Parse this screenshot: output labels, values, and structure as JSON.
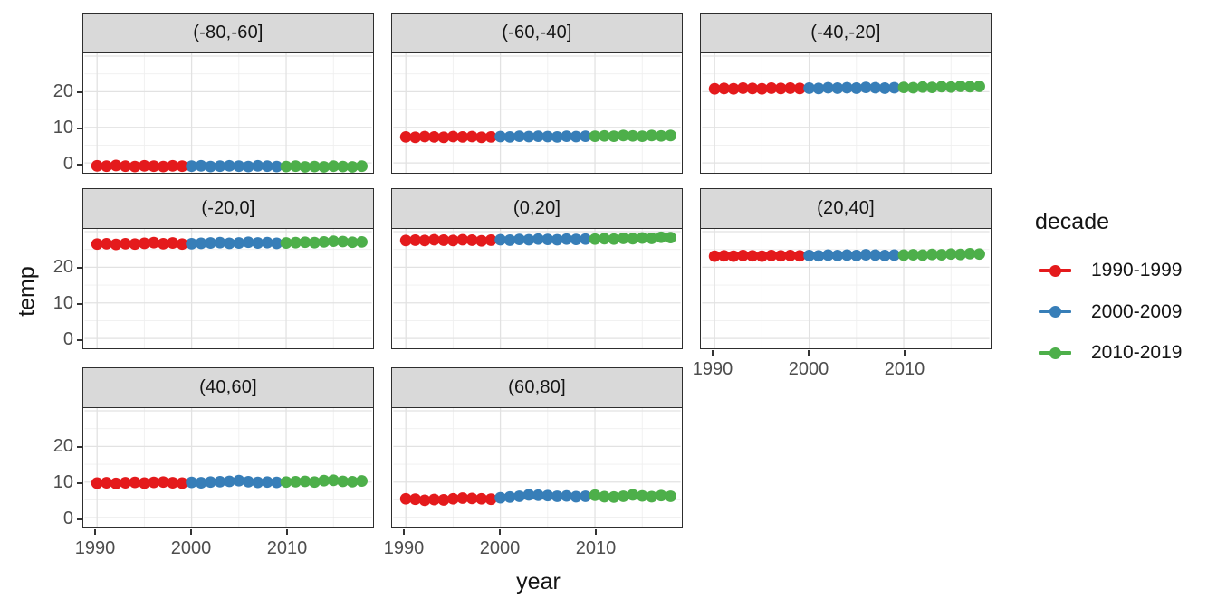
{
  "axes": {
    "x_title": "year",
    "y_title": "temp",
    "x_tick_labels": [
      "1990",
      "2000",
      "2010"
    ],
    "y_tick_labels": [
      "20",
      "10",
      "0"
    ]
  },
  "legend": {
    "title": "decade",
    "entries": [
      {
        "label": "1990-1999",
        "color": "#e41a1c"
      },
      {
        "label": "2000-2009",
        "color": "#377eb8"
      },
      {
        "label": "2010-2019",
        "color": "#4daf4a"
      }
    ]
  },
  "style_colors": {
    "strip_background": "#d9d9d9",
    "panel_border": "#2e2e2e",
    "grid_major": "#e2e2e2",
    "grid_minor": "#efefef",
    "tick_text": "#4d4d4d"
  },
  "chart_data": {
    "type": "scatter",
    "title": "",
    "xlabel": "year",
    "ylabel": "temp",
    "x_ticks": [
      1990,
      2000,
      2010
    ],
    "y_ticks": [
      0,
      10,
      20
    ],
    "xlim": [
      1988.7,
      2019.8
    ],
    "ylim": [
      -3,
      30.75
    ],
    "grid": true,
    "legend_position": "right",
    "legend_title": "decade",
    "series_names": [
      "1990-1999",
      "2000-2009",
      "2010-2019"
    ],
    "facets": [
      {
        "label": "(-80,-60]",
        "series": [
          {
            "name": "1990-1999",
            "start_year": 1990,
            "values": [
              -0.8,
              -0.9,
              -0.7,
              -0.9,
              -1.0,
              -0.8,
              -0.9,
              -1.0,
              -0.8,
              -0.9
            ]
          },
          {
            "name": "2000-2009",
            "start_year": 2000,
            "values": [
              -0.9,
              -0.8,
              -1.0,
              -0.9,
              -0.8,
              -0.9,
              -1.0,
              -0.8,
              -0.9,
              -1.0
            ]
          },
          {
            "name": "2010-2019",
            "start_year": 2010,
            "values": [
              -1.0,
              -0.9,
              -1.1,
              -1.0,
              -1.1,
              -0.9,
              -1.0,
              -1.1,
              -0.9
            ]
          }
        ]
      },
      {
        "label": "(-60,-40]",
        "series": [
          {
            "name": "1990-1999",
            "start_year": 1990,
            "values": [
              7.3,
              7.2,
              7.4,
              7.3,
              7.2,
              7.4,
              7.3,
              7.4,
              7.2,
              7.3
            ]
          },
          {
            "name": "2000-2009",
            "start_year": 2000,
            "values": [
              7.4,
              7.3,
              7.5,
              7.4,
              7.5,
              7.4,
              7.3,
              7.5,
              7.4,
              7.5
            ]
          },
          {
            "name": "2010-2019",
            "start_year": 2010,
            "values": [
              7.5,
              7.6,
              7.5,
              7.7,
              7.6,
              7.5,
              7.7,
              7.6,
              7.7
            ]
          }
        ]
      },
      {
        "label": "(-40,-20]",
        "series": [
          {
            "name": "1990-1999",
            "start_year": 1990,
            "values": [
              20.8,
              20.9,
              20.8,
              21.0,
              20.9,
              20.8,
              21.0,
              20.9,
              21.0,
              20.9
            ]
          },
          {
            "name": "2000-2009",
            "start_year": 2000,
            "values": [
              21.0,
              20.9,
              21.1,
              21.0,
              21.1,
              21.0,
              21.2,
              21.1,
              21.0,
              21.1
            ]
          },
          {
            "name": "2010-2019",
            "start_year": 2010,
            "values": [
              21.2,
              21.1,
              21.3,
              21.2,
              21.4,
              21.3,
              21.5,
              21.4,
              21.5
            ]
          }
        ]
      },
      {
        "label": "(-20,0]",
        "series": [
          {
            "name": "1990-1999",
            "start_year": 1990,
            "values": [
              26.5,
              26.6,
              26.4,
              26.6,
              26.5,
              26.7,
              26.9,
              26.6,
              26.8,
              26.5
            ]
          },
          {
            "name": "2000-2009",
            "start_year": 2000,
            "values": [
              26.6,
              26.7,
              26.8,
              26.9,
              26.7,
              26.8,
              27.0,
              26.8,
              26.9,
              26.7
            ]
          },
          {
            "name": "2010-2019",
            "start_year": 2010,
            "values": [
              26.8,
              26.9,
              27.0,
              26.9,
              27.1,
              27.3,
              27.2,
              27.0,
              27.1
            ]
          }
        ]
      },
      {
        "label": "(0,20]",
        "series": [
          {
            "name": "1990-1999",
            "start_year": 1990,
            "values": [
              27.5,
              27.6,
              27.5,
              27.7,
              27.6,
              27.5,
              27.7,
              27.6,
              27.4,
              27.6
            ]
          },
          {
            "name": "2000-2009",
            "start_year": 2000,
            "values": [
              27.7,
              27.6,
              27.8,
              27.7,
              27.9,
              27.8,
              27.7,
              27.9,
              27.8,
              27.9
            ]
          },
          {
            "name": "2010-2019",
            "start_year": 2010,
            "values": [
              27.9,
              28.0,
              27.9,
              28.1,
              28.0,
              28.2,
              28.1,
              28.4,
              28.3
            ]
          }
        ]
      },
      {
        "label": "(20,40]",
        "series": [
          {
            "name": "1990-1999",
            "start_year": 1990,
            "values": [
              23.1,
              23.2,
              23.1,
              23.3,
              23.2,
              23.1,
              23.3,
              23.2,
              23.3,
              23.2
            ]
          },
          {
            "name": "2000-2009",
            "start_year": 2000,
            "values": [
              23.3,
              23.2,
              23.4,
              23.3,
              23.4,
              23.3,
              23.5,
              23.4,
              23.3,
              23.4
            ]
          },
          {
            "name": "2010-2019",
            "start_year": 2010,
            "values": [
              23.4,
              23.5,
              23.4,
              23.6,
              23.5,
              23.7,
              23.6,
              23.8,
              23.7
            ]
          }
        ]
      },
      {
        "label": "(40,60]",
        "series": [
          {
            "name": "1990-1999",
            "start_year": 1990,
            "values": [
              9.7,
              9.8,
              9.6,
              9.8,
              9.9,
              9.7,
              9.9,
              10.0,
              9.8,
              9.7
            ]
          },
          {
            "name": "2000-2009",
            "start_year": 2000,
            "values": [
              9.9,
              9.8,
              10.0,
              10.1,
              10.2,
              10.4,
              10.1,
              9.9,
              10.0,
              9.9
            ]
          },
          {
            "name": "2010-2019",
            "start_year": 2010,
            "values": [
              10.0,
              10.1,
              10.2,
              10.0,
              10.4,
              10.5,
              10.2,
              10.1,
              10.3
            ]
          }
        ]
      },
      {
        "label": "(60,80]",
        "series": [
          {
            "name": "1990-1999",
            "start_year": 1990,
            "values": [
              5.3,
              5.2,
              4.9,
              5.1,
              5.0,
              5.3,
              5.5,
              5.4,
              5.3,
              5.2
            ]
          },
          {
            "name": "2000-2009",
            "start_year": 2000,
            "values": [
              5.6,
              5.8,
              6.0,
              6.4,
              6.3,
              6.2,
              6.0,
              6.1,
              5.9,
              6.0
            ]
          },
          {
            "name": "2010-2019",
            "start_year": 2010,
            "values": [
              6.3,
              5.9,
              5.8,
              6.0,
              6.4,
              6.1,
              5.9,
              6.2,
              6.0
            ]
          }
        ]
      }
    ]
  }
}
